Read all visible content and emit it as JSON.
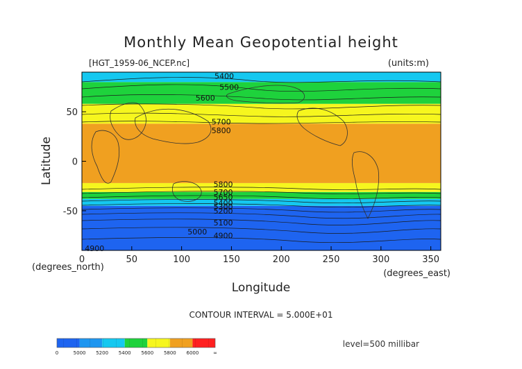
{
  "chart_data": {
    "type": "heatmap",
    "title": "Monthly Mean Geopotential height",
    "file_label": "[HGT_1959-06_NCEP.nc]",
    "units_label": "(units:m)",
    "xlabel": "Longitude",
    "ylabel": "Latitude",
    "x_unit_label": "(degrees_east)",
    "y_unit_label": "(degrees_north)",
    "xlim": [
      0,
      360
    ],
    "ylim": [
      -90,
      90
    ],
    "x_ticks": [
      0,
      50,
      100,
      150,
      200,
      250,
      300,
      350
    ],
    "y_ticks": [
      50,
      0,
      -50
    ],
    "x_tick_labels": [
      "0",
      "50",
      "100",
      "150",
      "200",
      "250",
      "300",
      "350"
    ],
    "y_tick_labels": [
      "50",
      "0",
      "-50"
    ],
    "contour_interval_text": "CONTOUR INTERVAL = 5.000E+01",
    "level_text": "level=500 millibar",
    "bands": [
      {
        "color": "#1e64f0",
        "lat_from": -90,
        "lat_to": -45
      },
      {
        "color": "#15c8f0",
        "lat_from": -45,
        "lat_to": -38
      },
      {
        "color": "#1ed23c",
        "lat_from": -38,
        "lat_to": -31
      },
      {
        "color": "#f6f61e",
        "lat_from": -31,
        "lat_to": -22
      },
      {
        "color": "#f0a020",
        "lat_from": -22,
        "lat_to": 38
      },
      {
        "color": "#f6f61e",
        "lat_from": 38,
        "lat_to": 58
      },
      {
        "color": "#1ed23c",
        "lat_from": 58,
        "lat_to": 80
      },
      {
        "color": "#15c8f0",
        "lat_from": 80,
        "lat_to": 90
      }
    ],
    "contour_labels": [
      {
        "text": "5400",
        "lon": 133,
        "lat": 86
      },
      {
        "text": "5500",
        "lon": 138,
        "lat": 75
      },
      {
        "text": "5600",
        "lon": 114,
        "lat": 64
      },
      {
        "text": "5700",
        "lon": 130,
        "lat": 40
      },
      {
        "text": "5800",
        "lon": 130,
        "lat": 31
      },
      {
        "text": "5800",
        "lon": 132,
        "lat": -23
      },
      {
        "text": "5700",
        "lon": 132,
        "lat": -31
      },
      {
        "text": "5650",
        "lon": 132,
        "lat": -36
      },
      {
        "text": "5400",
        "lon": 132,
        "lat": -42
      },
      {
        "text": "5300",
        "lon": 132,
        "lat": -46
      },
      {
        "text": "5200",
        "lon": 132,
        "lat": -50
      },
      {
        "text": "5100",
        "lon": 132,
        "lat": -62
      },
      {
        "text": "5000",
        "lon": 106,
        "lat": -71
      },
      {
        "text": "4900",
        "lon": 132,
        "lat": -75
      },
      {
        "text": "4900",
        "lon": 3,
        "lat": -88
      }
    ],
    "colorbar": {
      "colors": [
        "#1e64f0",
        "#1e96f0",
        "#15c8f0",
        "#1ed23c",
        "#f6f61e",
        "#f0a020",
        "#ff2020"
      ],
      "tick_labels": [
        "0",
        "5000",
        "5200",
        "5400",
        "5600",
        "5800",
        "6000",
        "∞"
      ]
    },
    "grid": false
  }
}
